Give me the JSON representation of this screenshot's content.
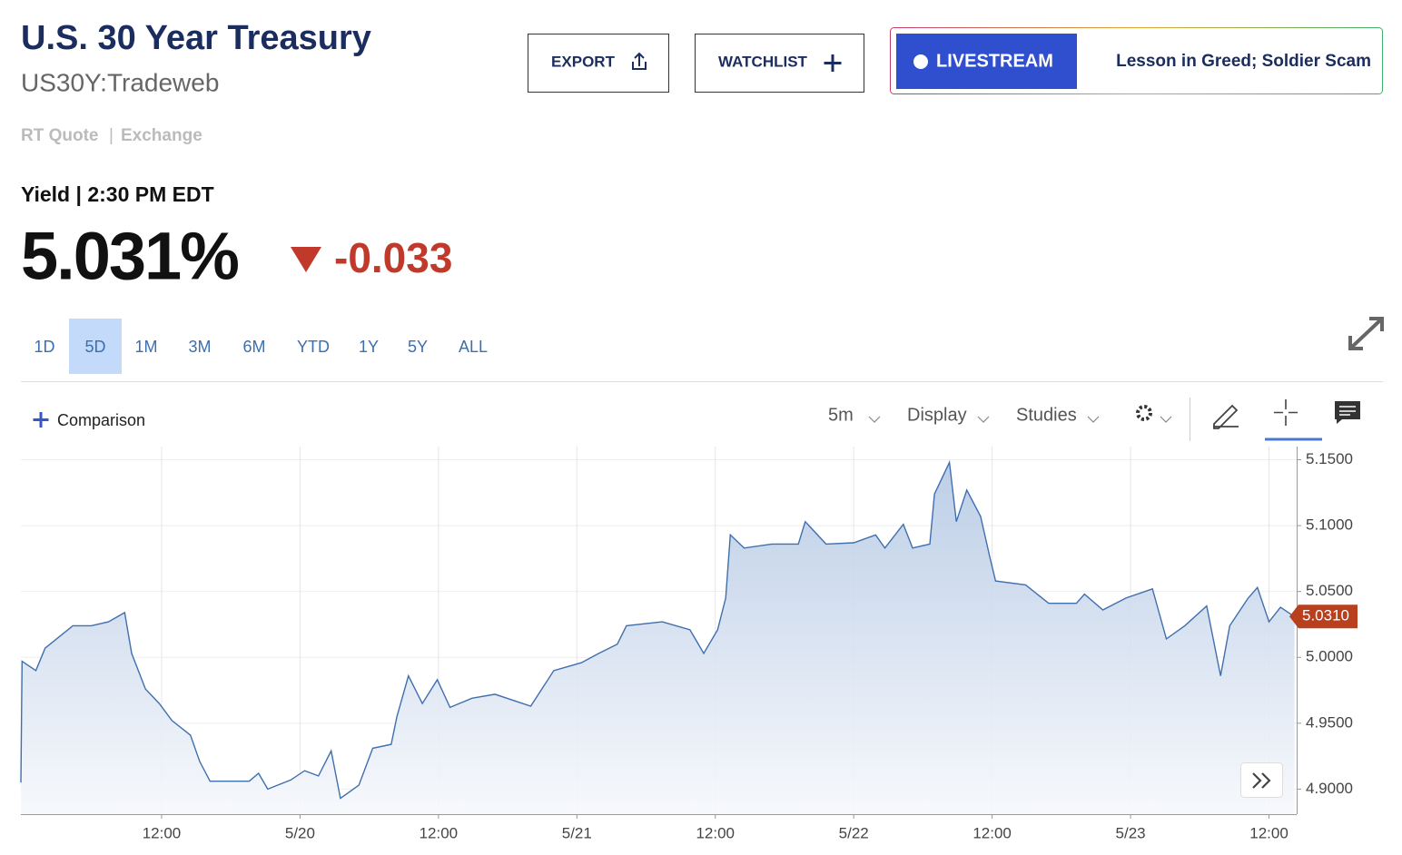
{
  "header": {
    "title": "U.S. 30 Year Treasury",
    "symbol": "US30Y:Tradeweb",
    "source": "RT Quote",
    "separator": "|",
    "venue": "Exchange",
    "buttons": [
      "EXPORT",
      "WATCHLIST"
    ],
    "livestream": "LIVESTREAM",
    "headline": "Lesson in Greed; Soldier Scam"
  },
  "quote": {
    "label": "Yield | 2:30 PM EDT",
    "price": "5.031%",
    "change": "-0.033"
  },
  "ranges": [
    "1D",
    "5D",
    "1M",
    "3M",
    "6M",
    "YTD",
    "1Y",
    "5Y",
    "ALL"
  ],
  "toolbar": {
    "comparison": "Comparison",
    "interval": "5m",
    "display": "Display",
    "studies": "Studies"
  },
  "chart_data": {
    "type": "area",
    "color": "#3f6fae",
    "grid": true,
    "x": [
      -24.2,
      -24.1,
      -22.9,
      -22.1,
      -19.7,
      -18.1,
      -16.6,
      -15.2,
      -14.6,
      -13.4,
      -12.2,
      -11.1,
      -9.5,
      -8.7,
      -7.8,
      -4.4,
      -3.6,
      -2.8,
      -0.8,
      0.4,
      1.6,
      2.7,
      3.5,
      5.1,
      6.3,
      7.9,
      8.4,
      9.4,
      10.6,
      11.9,
      13.0,
      14.9,
      16.9,
      20.0,
      22.0,
      24.4,
      25.9,
      27.5,
      28.3,
      31.4,
      33.8,
      35.0,
      36.2,
      36.9,
      37.3,
      38.5,
      40.9,
      43.2,
      43.8,
      45.6,
      48.0,
      49.9,
      50.7,
      52.3,
      53.1,
      54.6,
      55.0,
      56.3,
      56.9,
      57.8,
      59.0,
      59.8,
      60.3,
      62.9,
      64.9,
      67.3,
      68.0,
      69.6,
      71.6,
      73.9,
      75.1,
      76.7,
      78.6,
      79.8,
      80.6,
      82.2,
      83.0,
      84.0,
      85.0,
      86.2
    ],
    "values": [
      4.905,
      4.997,
      4.99,
      5.007,
      5.024,
      5.024,
      5.027,
      5.034,
      5.003,
      4.976,
      4.965,
      4.952,
      4.941,
      4.921,
      4.906,
      4.906,
      4.912,
      4.9,
      4.907,
      4.914,
      4.91,
      4.929,
      4.893,
      4.903,
      4.931,
      4.934,
      4.955,
      4.986,
      4.965,
      4.983,
      4.962,
      4.969,
      4.972,
      4.963,
      4.99,
      4.996,
      5.003,
      5.01,
      5.024,
      5.027,
      5.021,
      5.003,
      5.021,
      5.045,
      5.093,
      5.083,
      5.086,
      5.086,
      5.103,
      5.086,
      5.087,
      5.093,
      5.083,
      5.101,
      5.083,
      5.086,
      5.124,
      5.148,
      5.103,
      5.127,
      5.107,
      5.076,
      5.058,
      5.055,
      5.041,
      5.041,
      5.048,
      5.036,
      5.045,
      5.052,
      5.014,
      5.024,
      5.039,
      4.986,
      5.024,
      5.045,
      5.053,
      5.027,
      5.038,
      5.031
    ],
    "xlim": [
      -24.2,
      86.4
    ],
    "xticks": [
      {
        "value": -12,
        "label": "12:00"
      },
      {
        "value": 0,
        "label": "5/20"
      },
      {
        "value": 12,
        "label": "12:00"
      },
      {
        "value": 24,
        "label": "5/21"
      },
      {
        "value": 36,
        "label": "12:00"
      },
      {
        "value": 48,
        "label": "5/22"
      },
      {
        "value": 60,
        "label": "12:00"
      },
      {
        "value": 72,
        "label": "5/23"
      },
      {
        "value": 84,
        "label": "12:00"
      }
    ],
    "ylim": [
      4.881,
      5.16
    ],
    "yticks": [
      {
        "value": 4.9,
        "label": "4.9000"
      },
      {
        "value": 4.95,
        "label": "4.9500"
      },
      {
        "value": 5.0,
        "label": "5.0000"
      },
      {
        "value": 5.05,
        "label": "5.0500"
      },
      {
        "value": 5.1,
        "label": "5.1000"
      },
      {
        "value": 5.15,
        "label": "5.1500"
      }
    ],
    "annotations": [
      {
        "value": 5.031,
        "label": "5.0310"
      }
    ]
  }
}
